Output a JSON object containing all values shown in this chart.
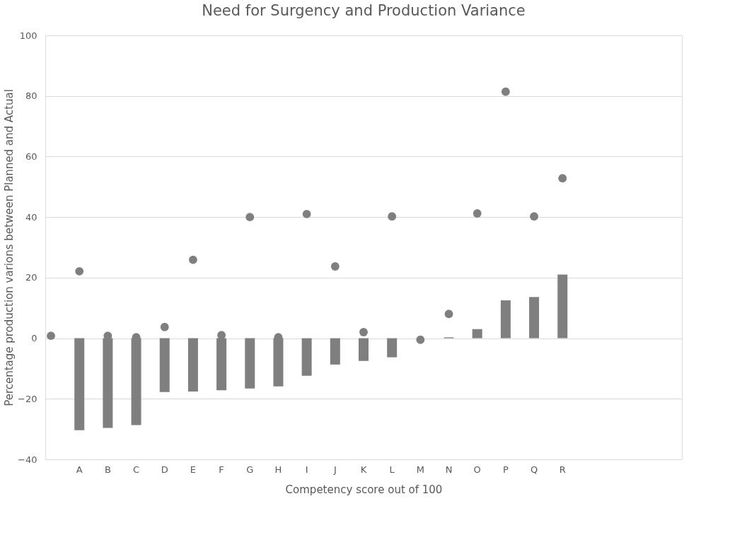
{
  "chart_data": {
    "type": "bar",
    "title": "Need for Surgency and Production Variance",
    "xlabel": "Competency score out of 100",
    "ylabel": "Percentage production varions between Planned and Actual",
    "categories": [
      null,
      "A",
      "B",
      "C",
      "D",
      "E",
      "F",
      "G",
      "H",
      "I",
      "J",
      "K",
      "L",
      "M",
      "N",
      "O",
      "P",
      "Q",
      "R",
      null,
      null,
      null,
      null
    ],
    "series": [
      {
        "color": "#7f7f7f",
        "values": [
          null,
          -30.4,
          -29.6,
          -28.7,
          -17.8,
          -17.6,
          -17.2,
          -16.6,
          -15.9,
          -12.4,
          -8.7,
          -7.5,
          -6.3,
          null,
          0.3,
          3,
          12.5,
          13.6,
          21,
          null,
          null,
          null,
          null
        ]
      },
      {
        "type": "scatter",
        "color": "#7f7f7f",
        "marker": "circle",
        "values": [
          0.8,
          22.1,
          0.8,
          0.3,
          3.7,
          25.9,
          1,
          40,
          0.3,
          41,
          23.7,
          2,
          40.2,
          -0.5,
          8,
          41.2,
          81.4,
          40.2,
          52.8,
          null,
          null,
          null,
          null
        ]
      }
    ],
    "ylim": [
      -40,
      100
    ],
    "yticks": [
      -40,
      -20,
      0,
      20,
      40,
      60,
      80,
      100
    ],
    "grid": "y",
    "legend": false
  }
}
